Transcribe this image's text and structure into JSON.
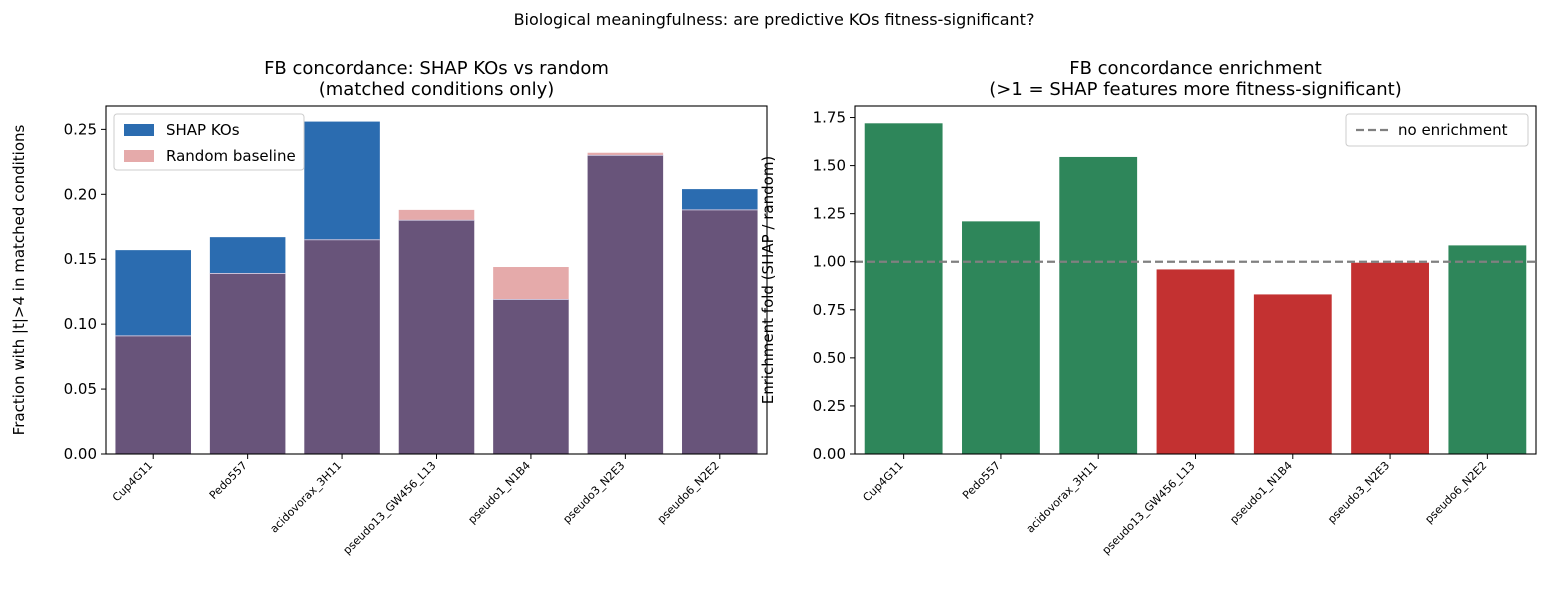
{
  "figure": {
    "suptitle": "Biological meaningfulness: are predictive KOs fitness-significant?"
  },
  "chart_data": [
    {
      "type": "bar",
      "mode": "overlay",
      "title": "FB concordance: SHAP KOs vs random\n(matched conditions only)",
      "xlabel": "",
      "ylabel": "Fraction with |t|>4 in matched conditions",
      "categories": [
        "Cup4G11",
        "Pedo557",
        "acidovorax_3H11",
        "pseudo13_GW456_L13",
        "pseudo1_N1B4",
        "pseudo3_N2E3",
        "pseudo6_N2E2"
      ],
      "series": [
        {
          "name": "SHAP KOs",
          "color": "#2b6cb0",
          "values": [
            0.157,
            0.167,
            0.256,
            0.18,
            0.119,
            0.23,
            0.204
          ]
        },
        {
          "name": "Random baseline",
          "color": "#e5aaaa",
          "values": [
            0.091,
            0.139,
            0.165,
            0.188,
            0.144,
            0.232,
            0.188
          ]
        }
      ],
      "overlap_color": "#68547a",
      "ylim": [
        0,
        0.268
      ],
      "yticks": [
        0.0,
        0.05,
        0.1,
        0.15,
        0.2,
        0.25
      ],
      "ytick_labels": [
        "0.00",
        "0.05",
        "0.10",
        "0.15",
        "0.20",
        "0.25"
      ],
      "grid": false,
      "legend": "top-left"
    },
    {
      "type": "bar",
      "title": "FB concordance enrichment\n(>1 = SHAP features more fitness-significant)",
      "xlabel": "",
      "ylabel": "Enrichment fold (SHAP / random)",
      "categories": [
        "Cup4G11",
        "Pedo557",
        "acidovorax_3H11",
        "pseudo13_GW456_L13",
        "pseudo1_N1B4",
        "pseudo3_N2E3",
        "pseudo6_N2E2"
      ],
      "values": [
        1.72,
        1.21,
        1.545,
        0.96,
        0.83,
        0.995,
        1.085
      ],
      "colors": {
        "above": "#2e865a",
        "below": "#c33131"
      },
      "reference_line": {
        "y": 1.0,
        "label": "no enrichment",
        "color": "#808080",
        "style": "dashed"
      },
      "ylim": [
        0,
        1.81
      ],
      "yticks": [
        0.0,
        0.25,
        0.5,
        0.75,
        1.0,
        1.25,
        1.5,
        1.75
      ],
      "ytick_labels": [
        "0.00",
        "0.25",
        "0.50",
        "0.75",
        "1.00",
        "1.25",
        "1.50",
        "1.75"
      ],
      "grid": false,
      "legend": "top-right"
    }
  ]
}
